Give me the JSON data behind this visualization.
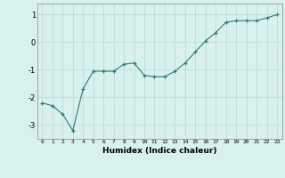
{
  "title": "",
  "xlabel": "Humidex (Indice chaleur)",
  "x_values": [
    0,
    1,
    2,
    3,
    4,
    5,
    6,
    7,
    8,
    9,
    10,
    11,
    12,
    13,
    14,
    15,
    16,
    17,
    18,
    19,
    20,
    21,
    22,
    23
  ],
  "y_values": [
    -2.2,
    -2.3,
    -2.6,
    -3.2,
    -1.7,
    -1.05,
    -1.05,
    -1.05,
    -0.8,
    -0.75,
    -1.2,
    -1.25,
    -1.25,
    -1.05,
    -0.75,
    -0.35,
    0.05,
    0.35,
    0.72,
    0.78,
    0.78,
    0.78,
    0.88,
    1.0
  ],
  "line_color": "#2e7d6e",
  "marker_color": "#2e7d6e",
  "bg_color": "#d8f0ee",
  "grid_color": "#b8d8d4",
  "ylim": [
    -3.5,
    1.4
  ],
  "yticks": [
    -3,
    -2,
    -1,
    0,
    1
  ],
  "xlim": [
    -0.5,
    23.5
  ]
}
